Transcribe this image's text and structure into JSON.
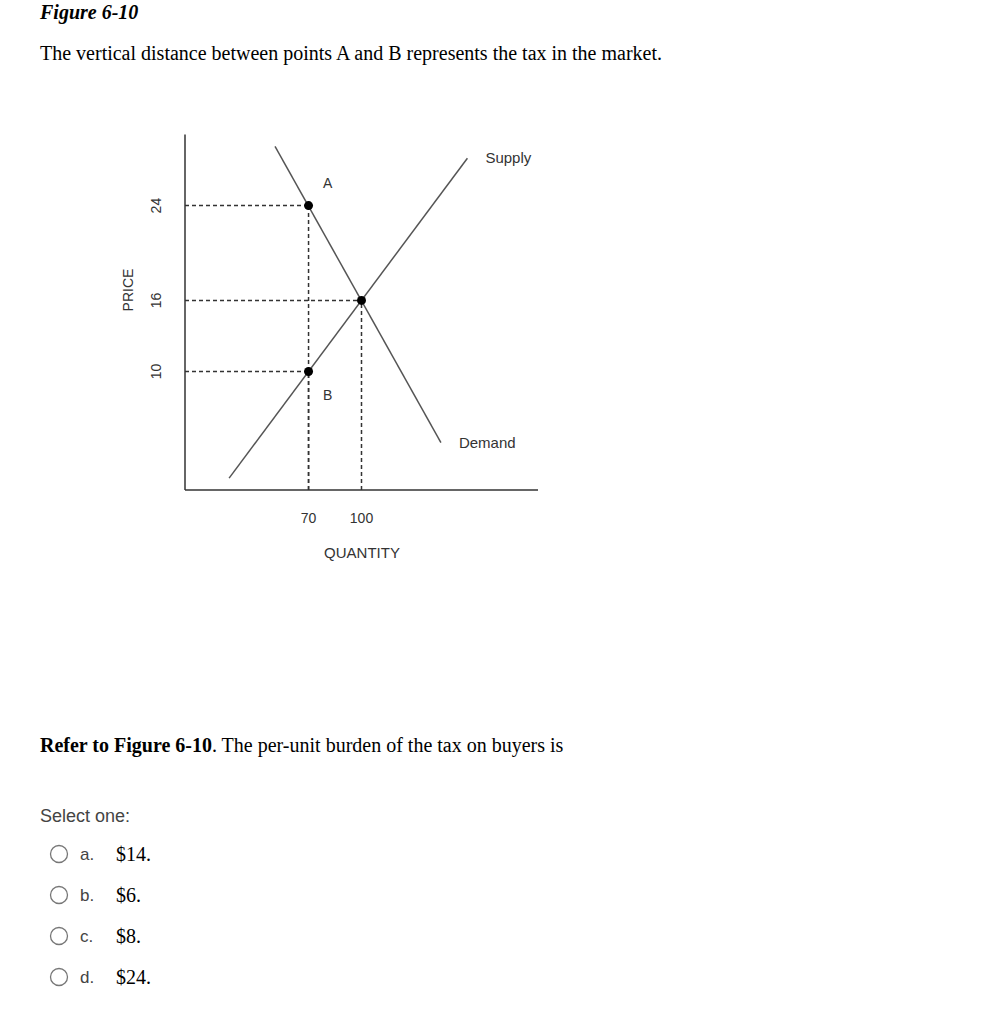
{
  "header": {
    "figure": "Figure 6-10",
    "caption": "The vertical distance between points A and B represents the tax in the market."
  },
  "chart_data": {
    "type": "line",
    "x_label": "QUANTITY",
    "y_label": "PRICE",
    "xlim": [
      0,
      200
    ],
    "ylim": [
      0,
      30
    ],
    "xticks": [
      70,
      100
    ],
    "yticks": [
      10,
      16,
      24
    ],
    "grid": false,
    "series": [
      {
        "name": "Supply",
        "color": "#555555",
        "x": [
          25,
          160
        ],
        "values": [
          1,
          28
        ]
      },
      {
        "name": "Demand",
        "color": "#555555",
        "x": [
          51,
          145
        ],
        "values": [
          29,
          4
        ]
      }
    ],
    "points": [
      {
        "x": 70,
        "y": 24
      },
      {
        "x": 70,
        "y": 10
      },
      {
        "x": 100,
        "y": 16
      }
    ],
    "annotations": [
      {
        "text": "A",
        "x": 70,
        "y": 24
      },
      {
        "text": "B",
        "x": 70,
        "y": 10
      }
    ]
  },
  "question": {
    "reference": "Refer to Figure 6-10",
    "text": ". The per-unit burden of the tax on buyers is",
    "prompt": "Select one:",
    "options": [
      {
        "letter": "a.",
        "text": "$14."
      },
      {
        "letter": "b.",
        "text": "$6."
      },
      {
        "letter": "c.",
        "text": "$8."
      },
      {
        "letter": "d.",
        "text": "$24."
      }
    ]
  }
}
